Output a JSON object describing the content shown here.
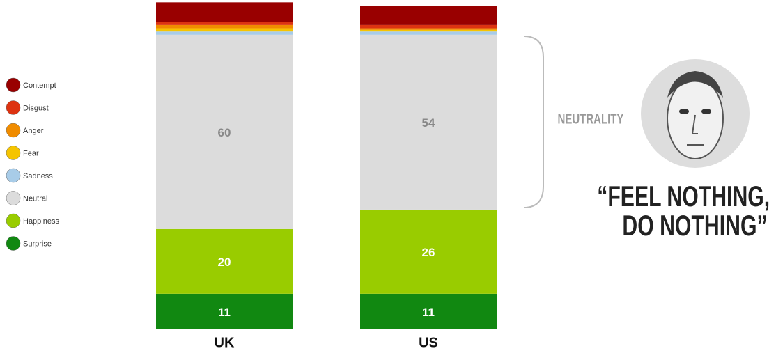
{
  "chart_data": {
    "type": "stacked_bar",
    "categories": [
      "UK",
      "US"
    ],
    "series": [
      {
        "name": "Contempt",
        "color": "#990000",
        "values": [
          6,
          6
        ]
      },
      {
        "name": "Disgust",
        "color": "#dd3311",
        "values": [
          1,
          1
        ]
      },
      {
        "name": "Anger",
        "color": "#f08c00",
        "values": [
          1,
          0.5
        ]
      },
      {
        "name": "Fear",
        "color": "#f5c400",
        "values": [
          1,
          0.5
        ]
      },
      {
        "name": "Sadness",
        "color": "#a8cce8",
        "values": [
          1,
          1
        ]
      },
      {
        "name": "Neutral",
        "color": "#dcdcdc",
        "values": [
          60,
          54
        ]
      },
      {
        "name": "Happiness",
        "color": "#99cc00",
        "values": [
          20,
          26
        ]
      },
      {
        "name": "Surprise",
        "color": "#118811",
        "values": [
          11,
          11
        ]
      }
    ],
    "annotations": {
      "label": "NEUTRALITY",
      "quote": [
        "“FEEL NOTHING,",
        "DO NOTHING”"
      ]
    }
  }
}
